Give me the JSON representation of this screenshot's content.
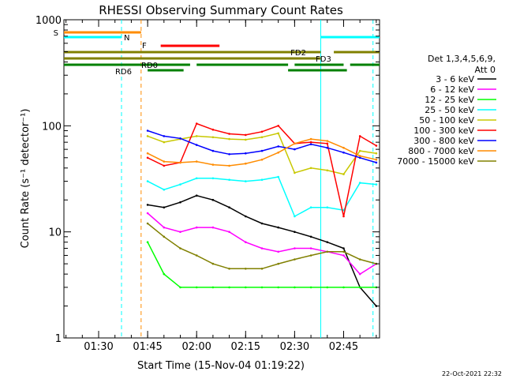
{
  "chart_data": {
    "type": "line",
    "title": "RHESSI Observing Summary Count Rates",
    "xlabel": "Start Time (15-Nov-04 01:19:22)",
    "ylabel": "Count Rate (s⁻¹ detector⁻¹)",
    "y_scale": "log",
    "ylim": [
      1,
      1000
    ],
    "xlim": [
      "01:19:22",
      "02:56:00"
    ],
    "x_ticks": [
      "01:30",
      "01:45",
      "02:00",
      "02:15",
      "02:30",
      "02:45"
    ],
    "y_ticks": [
      "1",
      "10",
      "100",
      "1000"
    ],
    "legend_title": [
      "Det 1,3,4,5,6,9,",
      "Att 0"
    ],
    "legend_position": "right",
    "footer": "22-Oct-2021 22:32",
    "vertical_markers": [
      {
        "time": "01:37",
        "color": "#00ffff",
        "style": "dashed"
      },
      {
        "time": "01:43",
        "color": "#ff8c00",
        "style": "dashed"
      },
      {
        "time": "02:38",
        "color": "#00ffff",
        "style": "solid"
      },
      {
        "time": "02:54",
        "color": "#00ffff",
        "style": "dashed"
      }
    ],
    "flag_bars": [
      {
        "label": "S",
        "color": "#ff8c00",
        "segments": [
          [
            "01:19:22",
            "01:43"
          ]
        ]
      },
      {
        "label": "N",
        "color": "#00ffff",
        "segments": [
          [
            "01:19:22",
            "01:37"
          ],
          [
            "02:38",
            "02:56"
          ]
        ]
      },
      {
        "label": "F",
        "color": "#ff0000",
        "segments": [
          [
            "01:49",
            "02:07"
          ]
        ]
      },
      {
        "label": "FD2",
        "color": "#808000",
        "segments": [
          [
            "01:19:22",
            "02:38"
          ],
          [
            "02:42",
            "02:56"
          ]
        ]
      },
      {
        "label": "FD3",
        "color": "#808000",
        "segments": [
          [
            "01:19:22",
            "02:38"
          ]
        ]
      },
      {
        "label": "RD0",
        "color": "#008000",
        "segments": [
          [
            "01:19:22",
            "01:58"
          ],
          [
            "02:00",
            "02:28"
          ],
          [
            "02:30",
            "02:45"
          ],
          [
            "02:47",
            "02:56"
          ]
        ]
      },
      {
        "label": "RD6",
        "color": "#008000",
        "segments": [
          [
            "01:45",
            "01:56"
          ],
          [
            "02:28",
            "02:46"
          ]
        ]
      }
    ],
    "x": [
      "01:45",
      "01:50",
      "01:55",
      "02:00",
      "02:05",
      "02:10",
      "02:15",
      "02:20",
      "02:25",
      "02:30",
      "02:35",
      "02:40",
      "02:45",
      "02:50",
      "02:55"
    ],
    "series": [
      {
        "name": "3 - 6 keV",
        "color": "#000000",
        "values": [
          18,
          17,
          19,
          22,
          20,
          17,
          14,
          12,
          11,
          10,
          9,
          8,
          7,
          3,
          2
        ]
      },
      {
        "name": "6 - 12 keV",
        "color": "#ff00ff",
        "values": [
          15,
          11,
          10,
          11,
          11,
          10,
          8,
          7,
          6.5,
          7,
          7,
          6.5,
          6,
          4,
          5
        ]
      },
      {
        "name": "12 - 25 keV",
        "color": "#00ff00",
        "values": [
          8,
          4,
          3,
          3,
          3,
          3,
          3,
          3,
          3,
          3,
          3,
          3,
          3,
          3,
          3
        ]
      },
      {
        "name": "25 - 50 keV",
        "color": "#00ffff",
        "values": [
          30,
          25,
          28,
          32,
          32,
          31,
          30,
          31,
          33,
          14,
          17,
          17,
          16,
          29,
          28
        ]
      },
      {
        "name": "50 - 100 keV",
        "color": "#c8c800",
        "values": [
          80,
          70,
          75,
          80,
          78,
          75,
          74,
          78,
          85,
          36,
          40,
          38,
          35,
          58,
          55
        ]
      },
      {
        "name": "100 - 300 keV",
        "color": "#ff0000",
        "values": [
          50,
          42,
          45,
          105,
          92,
          84,
          82,
          88,
          100,
          68,
          70,
          68,
          14,
          80,
          65
        ]
      },
      {
        "name": "300 - 800 keV",
        "color": "#0000ff",
        "values": [
          90,
          80,
          76,
          66,
          58,
          54,
          55,
          58,
          64,
          60,
          67,
          62,
          56,
          50,
          45
        ]
      },
      {
        "name": "800 - 7000 keV",
        "color": "#ff8c00",
        "values": [
          55,
          46,
          45,
          46,
          43,
          42,
          44,
          48,
          56,
          68,
          75,
          72,
          62,
          52,
          48
        ]
      },
      {
        "name": "7000 - 15000 keV",
        "color": "#808000",
        "values": [
          12,
          9,
          7,
          6,
          5,
          4.5,
          4.5,
          4.5,
          5,
          5.5,
          6,
          6.5,
          6.5,
          5.5,
          5
        ]
      }
    ]
  }
}
